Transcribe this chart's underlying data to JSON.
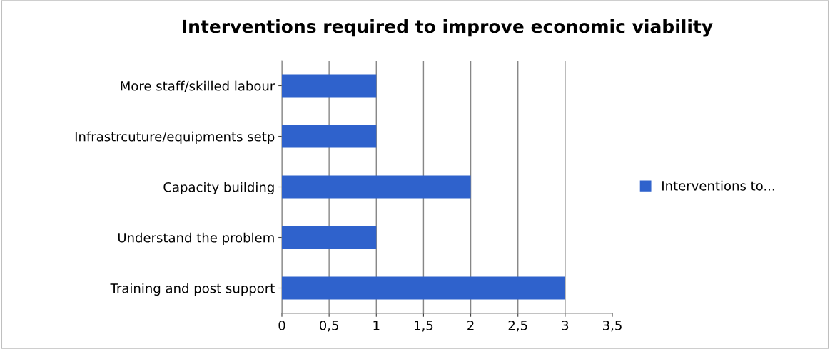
{
  "chart_data": {
    "type": "bar",
    "orientation": "horizontal",
    "title": "Interventions required to improve economic viability",
    "categories": [
      "More staff/skilled labour",
      "Infrastrcuture/equipments setp",
      "Capacity building",
      "Understand the problem",
      "Training and post support"
    ],
    "series": [
      {
        "name": "Interventions to...",
        "color": "#2f62cc",
        "values": [
          1,
          1,
          2,
          1,
          3
        ]
      }
    ],
    "xlim": [
      0,
      3.5
    ],
    "xticks": [
      0,
      {
        "value": 0.5,
        "label": "0,5"
      },
      1,
      {
        "value": 1.5,
        "label": "1,5"
      },
      2,
      {
        "value": 2.5,
        "label": "2,5"
      },
      3,
      {
        "value": 3.5,
        "label": "3,5"
      }
    ],
    "grid": "x",
    "legend": "right"
  }
}
